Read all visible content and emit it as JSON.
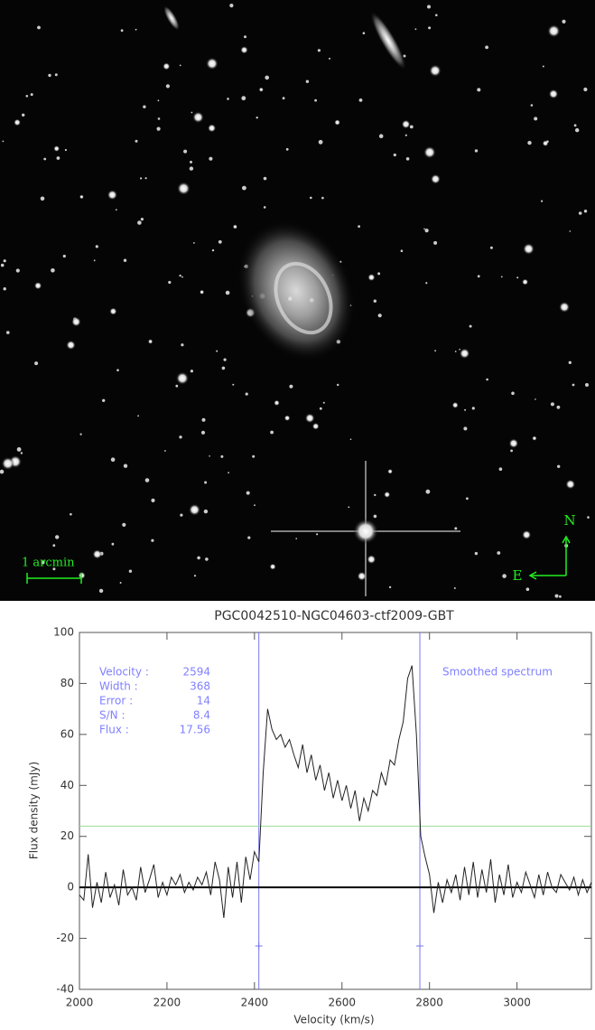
{
  "image": {
    "scale_label": "1 arcmin",
    "north": "N",
    "east": "E"
  },
  "chart_data": {
    "type": "line",
    "title": "PGC0042510-NGC04603-ctf2009-GBT",
    "x_label": "Velocity (km/s)",
    "y_label": "Flux density (mJy)",
    "color": "#222222",
    "xlim": [
      2000,
      3170
    ],
    "ylim": [
      -40,
      100
    ],
    "xticks": [
      2000,
      2200,
      2400,
      2600,
      2800,
      3000
    ],
    "yticks": [
      -40,
      -20,
      0,
      20,
      40,
      60,
      80,
      100
    ],
    "x": [
      2000,
      2010,
      2020,
      2030,
      2040,
      2050,
      2060,
      2070,
      2080,
      2090,
      2100,
      2110,
      2120,
      2130,
      2140,
      2150,
      2160,
      2170,
      2180,
      2190,
      2200,
      2210,
      2220,
      2230,
      2240,
      2250,
      2260,
      2270,
      2280,
      2290,
      2300,
      2310,
      2320,
      2330,
      2340,
      2350,
      2360,
      2370,
      2380,
      2390,
      2400,
      2410,
      2420,
      2430,
      2440,
      2450,
      2460,
      2470,
      2480,
      2490,
      2500,
      2510,
      2520,
      2530,
      2540,
      2550,
      2560,
      2570,
      2580,
      2590,
      2600,
      2610,
      2620,
      2630,
      2640,
      2650,
      2660,
      2670,
      2680,
      2690,
      2700,
      2710,
      2720,
      2730,
      2740,
      2750,
      2760,
      2770,
      2780,
      2790,
      2800,
      2810,
      2820,
      2830,
      2840,
      2850,
      2860,
      2870,
      2880,
      2890,
      2900,
      2910,
      2920,
      2930,
      2940,
      2950,
      2960,
      2970,
      2980,
      2990,
      3000,
      3010,
      3020,
      3030,
      3040,
      3050,
      3060,
      3070,
      3080,
      3090,
      3100,
      3110,
      3120,
      3130,
      3140,
      3150,
      3160,
      3170
    ],
    "values": [
      -3,
      -5,
      13,
      -8,
      2,
      -6,
      6,
      -4,
      1,
      -7,
      7,
      -3,
      0,
      -5,
      8,
      -2,
      3,
      9,
      -4,
      2,
      -3,
      4,
      1,
      5,
      -2,
      2,
      -1,
      4,
      1,
      6,
      -3,
      10,
      3,
      -12,
      8,
      -4,
      10,
      -6,
      12,
      3,
      14,
      10,
      45,
      70,
      62,
      58,
      60,
      55,
      58,
      52,
      47,
      56,
      45,
      52,
      42,
      48,
      38,
      45,
      35,
      42,
      34,
      40,
      31,
      38,
      26,
      35,
      30,
      38,
      36,
      45,
      40,
      50,
      48,
      58,
      65,
      82,
      87,
      60,
      20,
      12,
      5,
      -10,
      2,
      -6,
      3,
      -2,
      5,
      -5,
      8,
      -3,
      10,
      -4,
      7,
      -2,
      11,
      -6,
      5,
      -3,
      9,
      -4,
      2,
      -2,
      6,
      1,
      -4,
      5,
      -3,
      6,
      0,
      -2,
      5,
      2,
      -1,
      4,
      -3,
      3,
      -2,
      2
    ],
    "reference_lines": [
      {
        "axis": "x",
        "value": 2410,
        "color": "#7777ee"
      },
      {
        "axis": "x",
        "value": 2778,
        "color": "#7777ee"
      },
      {
        "axis": "y",
        "value": 24,
        "color": "#99dd99"
      },
      {
        "axis": "y",
        "value": 0,
        "color": "#000000"
      }
    ],
    "markers": [
      {
        "x": 2410,
        "y": -23
      },
      {
        "x": 2778,
        "y": -23
      }
    ],
    "annotation_color": "#8080ff",
    "stats": [
      {
        "label": "Velocity :",
        "value": 2594
      },
      {
        "label": "Width :",
        "value": 368
      },
      {
        "label": "Error :",
        "value": 14
      },
      {
        "label": "S/N :",
        "value": 8.4
      },
      {
        "label": "Flux :",
        "value": 17.56
      }
    ],
    "note": "Smoothed spectrum"
  }
}
